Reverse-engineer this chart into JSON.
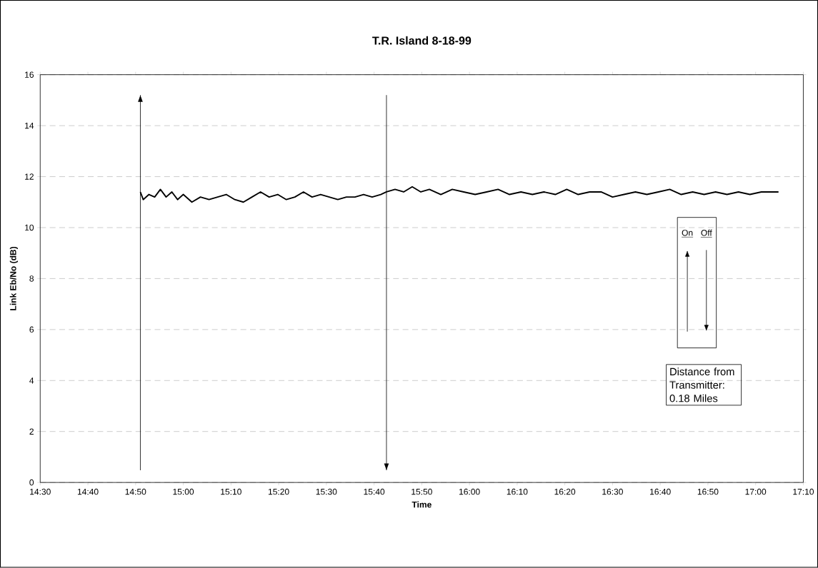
{
  "chart_data": {
    "type": "line",
    "title": "T.R. Island 8-18-99",
    "xlabel": "Time",
    "ylabel": "Link Eb/No (dB)",
    "x": [
      14.85,
      14.86,
      14.88,
      14.9,
      14.92,
      14.94,
      14.96,
      14.98,
      15.0,
      15.03,
      15.06,
      15.09,
      15.12,
      15.15,
      15.18,
      15.21,
      15.24,
      15.27,
      15.3,
      15.33,
      15.36,
      15.39,
      15.42,
      15.45,
      15.48,
      15.51,
      15.54,
      15.57,
      15.6,
      15.63,
      15.66,
      15.69,
      15.71,
      15.74,
      15.77,
      15.8,
      15.83,
      15.86,
      15.9,
      15.94,
      15.98,
      16.02,
      16.06,
      16.1,
      16.14,
      16.18,
      16.22,
      16.26,
      16.3,
      16.34,
      16.38,
      16.42,
      16.46,
      16.5,
      16.54,
      16.58,
      16.62,
      16.66,
      16.7,
      16.74,
      16.78,
      16.82,
      16.86,
      16.9,
      16.94,
      16.98,
      17.02,
      17.06,
      17.08
    ],
    "series": [
      {
        "color": "#000000",
        "values": [
          11.4,
          11.1,
          11.3,
          11.2,
          11.5,
          11.2,
          11.4,
          11.1,
          11.3,
          11.0,
          11.2,
          11.1,
          11.2,
          11.3,
          11.1,
          11.0,
          11.2,
          11.4,
          11.2,
          11.3,
          11.1,
          11.2,
          11.4,
          11.2,
          11.3,
          11.2,
          11.1,
          11.2,
          11.2,
          11.3,
          11.2,
          11.3,
          11.4,
          11.5,
          11.4,
          11.6,
          11.4,
          11.5,
          11.3,
          11.5,
          11.4,
          11.3,
          11.4,
          11.5,
          11.3,
          11.4,
          11.3,
          11.4,
          11.3,
          11.5,
          11.3,
          11.4,
          11.4,
          11.2,
          11.3,
          11.4,
          11.3,
          11.4,
          11.5,
          11.3,
          11.4,
          11.3,
          11.4,
          11.3,
          11.4,
          11.3,
          11.4,
          11.4,
          11.4
        ]
      }
    ],
    "xlim": [
      14.5,
      17.1667
    ],
    "xticks": [
      {
        "value": 14.5,
        "label": "14:30"
      },
      {
        "value": 14.6667,
        "label": "14:40"
      },
      {
        "value": 14.8333,
        "label": "14:50"
      },
      {
        "value": 15.0,
        "label": "15:00"
      },
      {
        "value": 15.1667,
        "label": "15:10"
      },
      {
        "value": 15.3333,
        "label": "15:20"
      },
      {
        "value": 15.5,
        "label": "15:30"
      },
      {
        "value": 15.6667,
        "label": "15:40"
      },
      {
        "value": 15.8333,
        "label": "15:50"
      },
      {
        "value": 16.0,
        "label": "16:00"
      },
      {
        "value": 16.1667,
        "label": "16:10"
      },
      {
        "value": 16.3333,
        "label": "16:20"
      },
      {
        "value": 16.5,
        "label": "16:30"
      },
      {
        "value": 16.6667,
        "label": "16:40"
      },
      {
        "value": 16.8333,
        "label": "16:50"
      },
      {
        "value": 17.0,
        "label": "17:00"
      },
      {
        "value": 17.1667,
        "label": "17:10"
      }
    ],
    "ylim": [
      0,
      16
    ],
    "yticks": [
      0,
      2,
      4,
      6,
      8,
      10,
      12,
      14,
      16
    ],
    "grid": "y",
    "ref_lines": [
      {
        "axis": "x",
        "value": 14.85
      },
      {
        "axis": "x",
        "value": 15.71
      }
    ],
    "annotations": [
      "On",
      "Off",
      "Distance from Transmitter: 0.18 Miles"
    ]
  }
}
